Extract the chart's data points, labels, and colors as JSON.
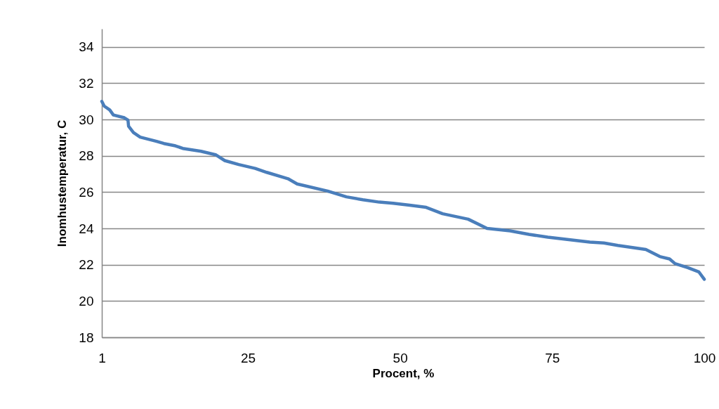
{
  "chart_data": {
    "type": "line",
    "xlabel": "Procent, %",
    "ylabel": "Inomhustemperatur, C",
    "xlim": [
      1,
      100
    ],
    "xticks": [
      1,
      25,
      50,
      75,
      100
    ],
    "ylim": [
      18,
      35
    ],
    "yticks": [
      18,
      20,
      22,
      24,
      26,
      28,
      30,
      32,
      34
    ],
    "grid": "y",
    "legend": false,
    "marker": "none",
    "line_style": "solid",
    "series": [
      {
        "color": "#4a7ebb",
        "x": [
          1,
          1.4,
          2.3,
          2.9,
          4.7,
          5.3,
          5.4,
          6.2,
          7.3,
          10.0,
          11.2,
          13.1,
          14.3,
          17.3,
          19.7,
          21.2,
          23.5,
          26.2,
          28.1,
          31.6,
          33.1,
          38.1,
          41.2,
          43.9,
          46.6,
          48.9,
          51.6,
          54.3,
          57.0,
          61.2,
          64.3,
          68.1,
          71.2,
          74.3,
          81.2,
          83.5,
          85.8,
          90.4,
          92.7,
          94.3,
          95.2,
          97.3,
          99.1,
          100
        ],
        "values": [
          31.0,
          30.74,
          30.53,
          30.25,
          30.1,
          29.97,
          29.63,
          29.28,
          29.03,
          28.8,
          28.68,
          28.55,
          28.41,
          28.25,
          28.06,
          27.74,
          27.52,
          27.31,
          27.09,
          26.74,
          26.45,
          26.06,
          25.74,
          25.58,
          25.45,
          25.39,
          25.28,
          25.16,
          24.81,
          24.51,
          24.0,
          23.87,
          23.67,
          23.52,
          23.25,
          23.2,
          23.06,
          22.84,
          22.45,
          22.32,
          22.06,
          21.84,
          21.61,
          21.2
        ]
      }
    ]
  }
}
